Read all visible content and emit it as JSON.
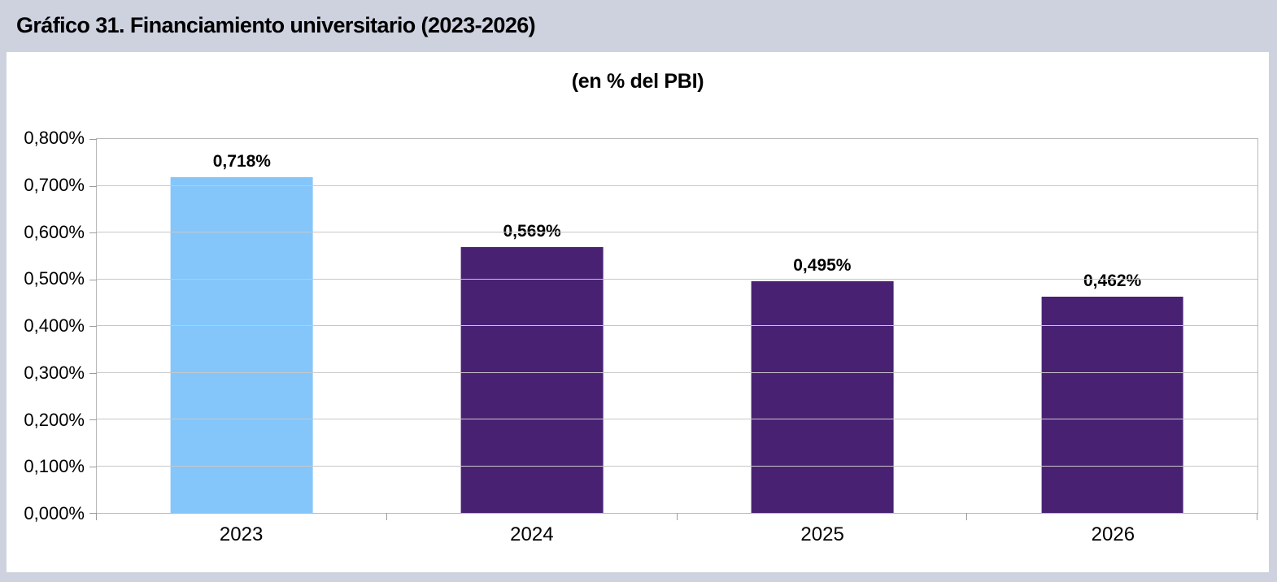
{
  "title": "Gráfico 31. Financiamiento universitario (2023-2026)",
  "chart_data": {
    "type": "bar",
    "title": "Gráfico 31. Financiamiento universitario (2023-2026)",
    "subtitle": "(en % del PBI)",
    "categories": [
      "2023",
      "2024",
      "2025",
      "2026"
    ],
    "values": [
      0.718,
      0.569,
      0.495,
      0.462
    ],
    "value_labels": [
      "0,718%",
      "0,569%",
      "0,495%",
      "0,462%"
    ],
    "bar_colors": [
      "#84C6F9",
      "#482173",
      "#482173",
      "#482173"
    ],
    "xlabel": "",
    "ylabel": "",
    "ylim": [
      0,
      0.8
    ],
    "ytick_values": [
      0,
      0.1,
      0.2,
      0.3,
      0.4,
      0.5,
      0.6,
      0.7,
      0.8
    ],
    "ytick_labels": [
      "0,000%",
      "0,100%",
      "0,200%",
      "0,300%",
      "0,400%",
      "0,500%",
      "0,600%",
      "0,700%",
      "0,800%"
    ],
    "grid": "horizontal",
    "legend": "none",
    "decimal_separator": ",",
    "colors": {
      "page_background": "#CED2DF",
      "plot_background": "#FFFFFF",
      "gridline": "#C8C8C8",
      "axis": "#B9B9B9",
      "text": "#000000",
      "highlight_bar": "#84C6F9",
      "default_bar": "#482173"
    }
  }
}
